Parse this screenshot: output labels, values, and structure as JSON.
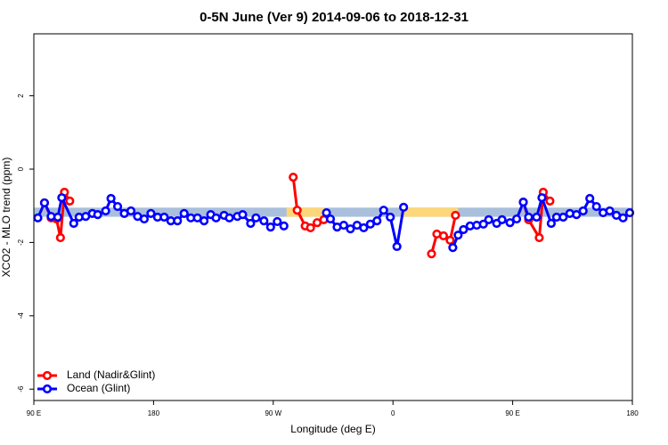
{
  "chart_data": {
    "type": "line",
    "title": "0-5N June (Ver 9)   2014-09-06 to 2018-12-31",
    "x_label": "Longitude (deg E)",
    "y_label": "XCO2 - MLO trend (ppm)",
    "xlim": [
      90,
      540
    ],
    "ylim": [
      -6.31,
      3.69
    ],
    "xticks": [
      {
        "value": 90,
        "label": "90 E"
      },
      {
        "value": 180,
        "label": "180"
      },
      {
        "value": 270,
        "label": "90 W"
      },
      {
        "value": 360,
        "label": "0"
      },
      {
        "value": 450,
        "label": "90 E"
      },
      {
        "value": 540,
        "label": "180"
      }
    ],
    "yticks": [
      -6,
      -4,
      -2,
      0,
      2
    ],
    "legend": "bottom-left",
    "bands": [
      {
        "xlim": [
          90,
          540
        ],
        "ylim": [
          -1.3,
          -1.05
        ],
        "color": "#a9bfdc"
      },
      {
        "xlim": [
          280,
          309
        ],
        "ylim": [
          -1.3,
          -1.05
        ],
        "color": "#fdd77a"
      },
      {
        "xlim": [
          367,
          409
        ],
        "ylim": [
          -1.3,
          -1.05
        ],
        "color": "#fdd77a"
      }
    ],
    "series": [
      {
        "name": "Land (Nadir&Glint)",
        "color": "#ff0000",
        "x": [
          98,
          103,
          107,
          110,
          113,
          117,
          null,
          285,
          288,
          294,
          298,
          303,
          308,
          null,
          389,
          393,
          398,
          403,
          407,
          null,
          458,
          462,
          470,
          473,
          478
        ],
        "values": [
          -0.92,
          -1.33,
          -1.36,
          -1.87,
          -0.63,
          -0.87,
          null,
          -0.22,
          -1.12,
          -1.55,
          -1.6,
          -1.46,
          -1.38,
          null,
          -2.31,
          -1.77,
          -1.82,
          -1.94,
          -1.26,
          null,
          -0.9,
          -1.38,
          -1.87,
          -0.63,
          -0.87
        ]
      },
      {
        "name": "Ocean (Glint)",
        "color": "#0000ff",
        "x": [
          93,
          98,
          103,
          108,
          111,
          120,
          124,
          129,
          134,
          138,
          144,
          148,
          153,
          158,
          163,
          168,
          173,
          178,
          183,
          188,
          193,
          198,
          203,
          208,
          213,
          218,
          223,
          227,
          233,
          237,
          243,
          247,
          253,
          257,
          263,
          268,
          273,
          278,
          null,
          310,
          313,
          318,
          323,
          328,
          333,
          338,
          343,
          348,
          353,
          358,
          363,
          368,
          null,
          405,
          409,
          413,
          418,
          423,
          428,
          432,
          438,
          442,
          448,
          453,
          458,
          462,
          468,
          472,
          479,
          483,
          488,
          493,
          498,
          503,
          508,
          513,
          518,
          523,
          528,
          533,
          538
        ],
        "values": [
          -1.33,
          -0.92,
          -1.29,
          -1.31,
          -0.78,
          -1.48,
          -1.31,
          -1.29,
          -1.21,
          -1.24,
          -1.14,
          -0.8,
          -1.02,
          -1.21,
          -1.14,
          -1.29,
          -1.36,
          -1.21,
          -1.31,
          -1.31,
          -1.41,
          -1.41,
          -1.21,
          -1.33,
          -1.33,
          -1.41,
          -1.24,
          -1.33,
          -1.26,
          -1.33,
          -1.29,
          -1.24,
          -1.48,
          -1.33,
          -1.41,
          -1.58,
          -1.43,
          -1.55,
          null,
          -1.19,
          -1.36,
          -1.58,
          -1.53,
          -1.63,
          -1.53,
          -1.6,
          -1.5,
          -1.41,
          -1.12,
          -1.31,
          -2.11,
          -1.04,
          null,
          -2.14,
          -1.8,
          -1.65,
          -1.55,
          -1.53,
          -1.5,
          -1.38,
          -1.48,
          -1.38,
          -1.46,
          -1.36,
          -0.9,
          -1.31,
          -1.31,
          -0.78,
          -1.48,
          -1.31,
          -1.31,
          -1.21,
          -1.24,
          -1.14,
          -0.8,
          -1.02,
          -1.19,
          -1.14,
          -1.26,
          -1.33,
          -1.19
        ]
      }
    ]
  }
}
